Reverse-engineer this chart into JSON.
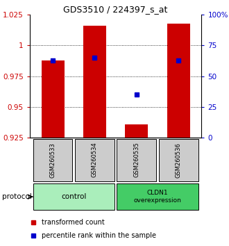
{
  "title": "GDS3510 / 224397_s_at",
  "samples": [
    "GSM260533",
    "GSM260534",
    "GSM260535",
    "GSM260536"
  ],
  "bar_values": [
    0.988,
    1.016,
    0.936,
    1.018
  ],
  "blue_values": [
    0.988,
    0.99,
    0.96,
    0.988
  ],
  "ylim_left": [
    0.925,
    1.025
  ],
  "ylim_right": [
    0,
    100
  ],
  "yticks_left": [
    0.925,
    0.95,
    0.975,
    1.0,
    1.025
  ],
  "ytick_labels_left": [
    "0.925",
    "0.95",
    "0.975",
    "1",
    "1.025"
  ],
  "yticks_right": [
    0,
    25,
    50,
    75,
    100
  ],
  "ytick_labels_right": [
    "0",
    "25",
    "50",
    "75",
    "100%"
  ],
  "bar_color": "#cc0000",
  "blue_color": "#0000cc",
  "groups": [
    {
      "label": "control",
      "samples": [
        0,
        1
      ],
      "color": "#aaeebb"
    },
    {
      "label": "CLDN1\noverexpression",
      "samples": [
        2,
        3
      ],
      "color": "#44cc66"
    }
  ],
  "protocol_label": "protocol",
  "legend_red": "transformed count",
  "legend_blue": "percentile rank within the sample",
  "bar_width": 0.55,
  "background_plot": "#ffffff",
  "axis_label_color_left": "#cc0000",
  "axis_label_color_right": "#0000cc"
}
